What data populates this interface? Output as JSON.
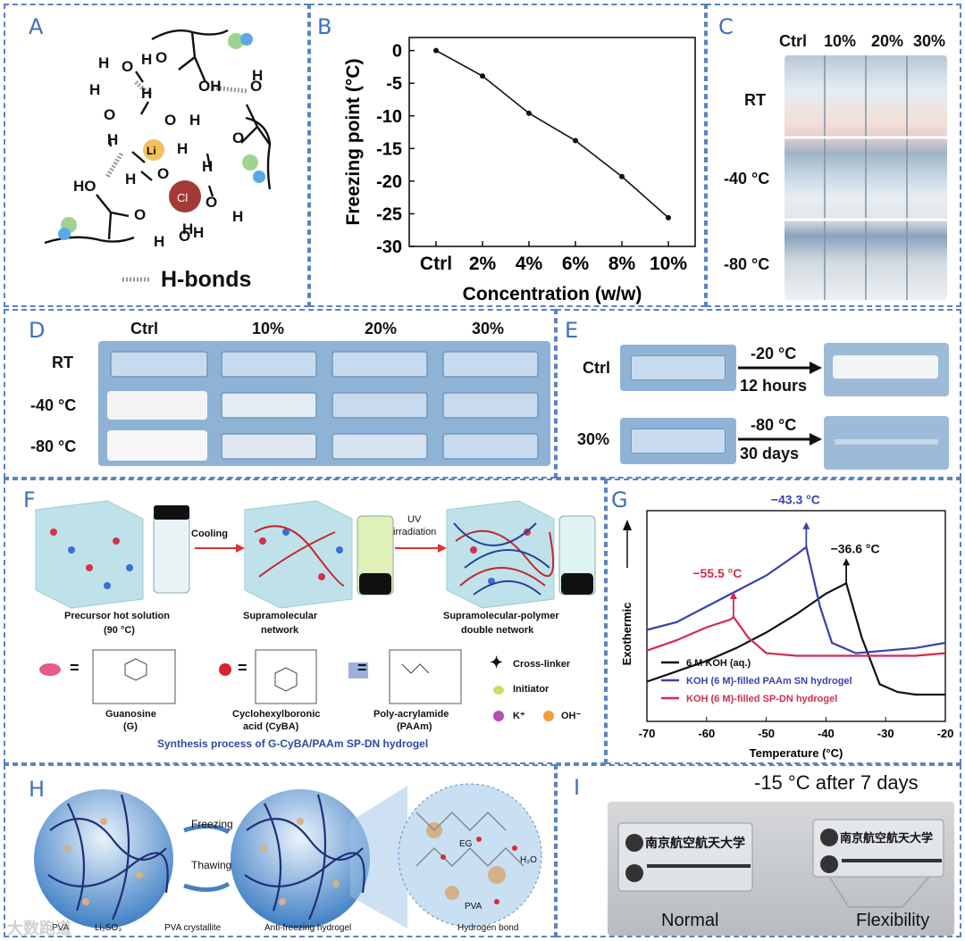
{
  "panels": {
    "A": "A",
    "B": "B",
    "C": "C",
    "D": "D",
    "E": "E",
    "F": "F",
    "G": "G",
    "H": "H",
    "I": "I"
  },
  "panelA": {
    "atoms": {
      "O": "O",
      "H": "H",
      "OH": "OH",
      "HO": "HO",
      "Li": "Li",
      "Cl": "Cl",
      "plus": "+",
      "minus": "-"
    },
    "legend": "H-bonds"
  },
  "panelB": {
    "chart_data": {
      "type": "line",
      "categories": [
        "Ctrl",
        "2%",
        "4%",
        "6%",
        "8%",
        "10%"
      ],
      "values": [
        0,
        -3.9,
        -9.6,
        -13.8,
        -19.3,
        -25.6
      ],
      "xlabel": "Concentration (w/w)",
      "ylabel": "Freezing point (°C)",
      "ylim": [
        -30,
        2
      ],
      "yticks": [
        0,
        -5,
        -10,
        -15,
        -20,
        -25,
        -30
      ]
    }
  },
  "panelC": {
    "columns": [
      "Ctrl",
      "10%",
      "20%",
      "30%"
    ],
    "rows": [
      "RT",
      "-40 °C",
      "-80 °C"
    ]
  },
  "panelD": {
    "columns": [
      "Ctrl",
      "10%",
      "20%",
      "30%"
    ],
    "rows": [
      "RT",
      "-40 °C",
      "-80 °C"
    ]
  },
  "panelE": {
    "rows": [
      {
        "label": "Ctrl",
        "temp": "-20 °C",
        "time": "12 hours"
      },
      {
        "label": "30%",
        "temp": "-80 °C",
        "time": "30 days"
      }
    ]
  },
  "panelF": {
    "step1": "Cooling",
    "step2a": "UV",
    "step2b": "irradiation",
    "stage1": "Precursor hot solution",
    "stage1b": "(90 °C)",
    "stage2": "Supramolecular",
    "stage2b": "network",
    "stage3": "Supramolecular-polymer",
    "stage3b": "double network",
    "eq": "=",
    "guanosine": "Guanosine",
    "guanosine_b": "(G)",
    "cyba": "Cyclohexylboronic",
    "cyba_b": "acid (CyBA)",
    "paam": "Poly-acrylamide",
    "paam_b": "(PAAm)",
    "crosslinker": "Cross-linker",
    "initiator": "Initiator",
    "kplus": "K⁺",
    "oh": "OH⁻",
    "caption": "Synthesis process of G-CyBA/PAAm SP-DN hydrogel"
  },
  "panelG": {
    "chart_data": {
      "type": "line",
      "xlabel": "Temperature (°C)",
      "ylabel": "Exothermic",
      "xlim": [
        -70,
        -20
      ],
      "xticks": [
        -70,
        -60,
        -50,
        -40,
        -30,
        -20
      ],
      "series": [
        {
          "name": "6 M KOH (aq.)",
          "color": "#111111",
          "peak": -36.6,
          "peak_label": "−36.6 °C",
          "x": [
            -70,
            -65,
            -60,
            -55,
            -50,
            -45,
            -40,
            -36.6,
            -34,
            -31,
            -28,
            -25,
            -20
          ],
          "y": [
            0.05,
            0.09,
            0.13,
            0.18,
            0.24,
            0.31,
            0.39,
            0.43,
            0.22,
            0.04,
            0.01,
            0.0,
            0.0
          ]
        },
        {
          "name": "KOH (6 M)-filled PAAm SN hydrogel",
          "color": "#3b3fb0",
          "peak": -43.3,
          "peak_label": "−43.3 °C",
          "x": [
            -70,
            -65,
            -60,
            -55,
            -50,
            -45,
            -43.3,
            -41,
            -39,
            -35,
            -30,
            -25,
            -20
          ],
          "y": [
            0.25,
            0.28,
            0.34,
            0.4,
            0.46,
            0.54,
            0.57,
            0.34,
            0.2,
            0.16,
            0.17,
            0.18,
            0.2
          ]
        },
        {
          "name": "KOH (6 M)-filled SP-DN hydrogel",
          "color": "#d42a4f",
          "peak": -55.5,
          "peak_label": "−55.5 °C",
          "x": [
            -70,
            -65,
            -60,
            -56,
            -55.5,
            -53,
            -50,
            -45,
            -40,
            -35,
            -30,
            -25,
            -20
          ],
          "y": [
            0.17,
            0.21,
            0.26,
            0.29,
            0.3,
            0.22,
            0.16,
            0.15,
            0.15,
            0.15,
            0.15,
            0.15,
            0.16
          ]
        }
      ]
    }
  },
  "panelH": {
    "freezing": "Freezing",
    "thawing": "Thawing",
    "legend_pva": "PVA",
    "legend_so": "Li₂SO₃",
    "legend_cryst": "PVA crystallite",
    "caption_mid": "Anti-freezing hydrogel",
    "hbond": "Hydrogen bond",
    "eg": "EG",
    "h2o": "H₂O",
    "pva": "PVA"
  },
  "panelI": {
    "title": "-15 °C after 7 days",
    "left": "Normal",
    "right": "Flexibility",
    "label_text": "南京航空航天大学"
  },
  "watermark": "大数跑道"
}
